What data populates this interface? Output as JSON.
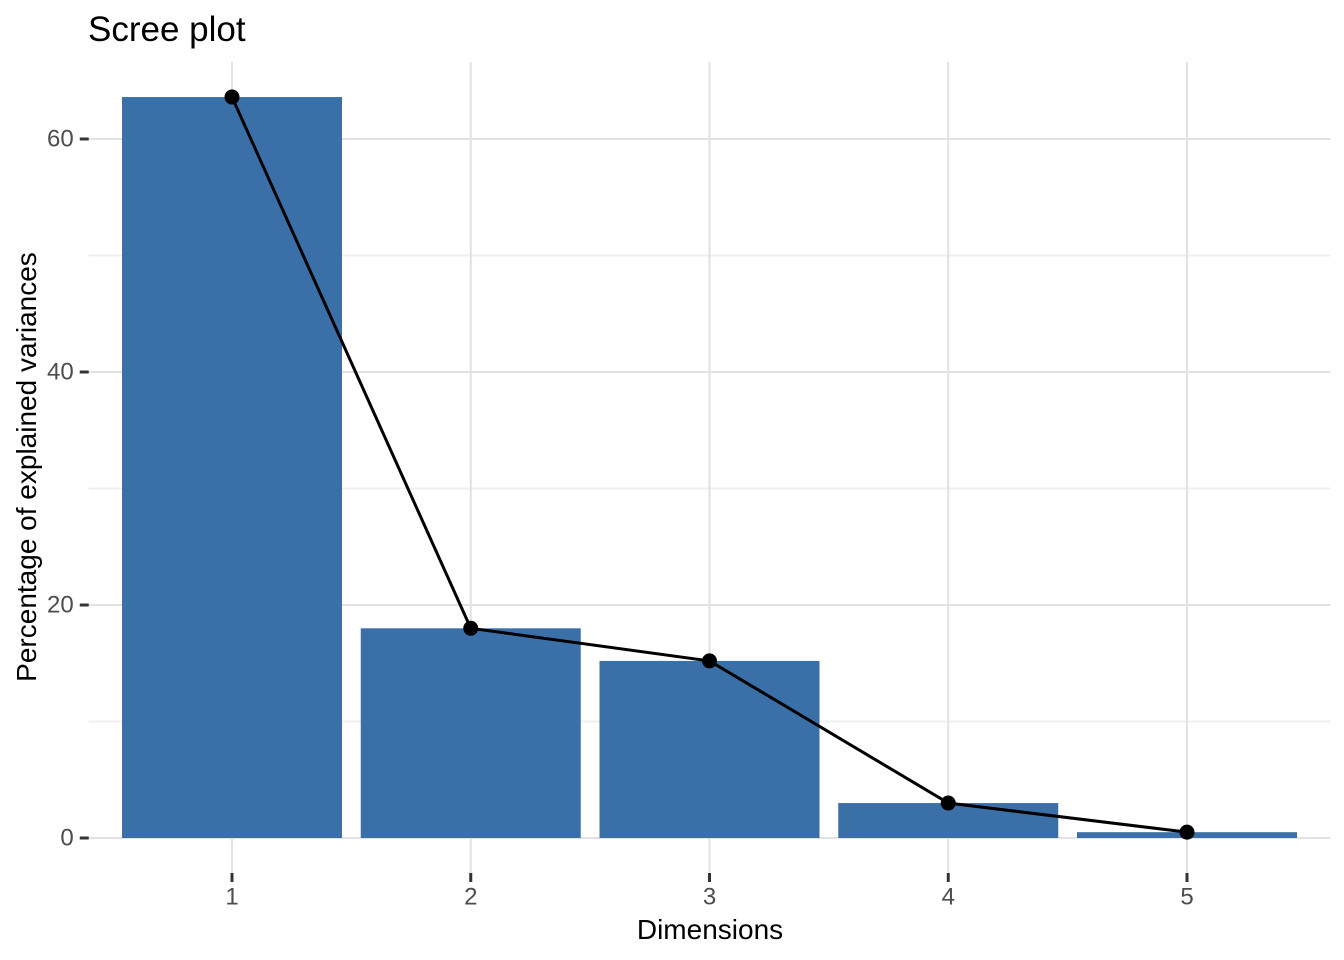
{
  "chart": {
    "title": "Scree plot",
    "x_axis_title": "Dimensions",
    "y_axis_title": "Percentage of explained variances"
  },
  "chart_data": {
    "type": "bar",
    "overlay": "line+point",
    "title": "Scree plot",
    "xlabel": "Dimensions",
    "ylabel": "Percentage of explained variances",
    "categories": [
      "1",
      "2",
      "3",
      "4",
      "5"
    ],
    "values": [
      63.6,
      18.0,
      15.2,
      3.0,
      0.5
    ],
    "y_ticks": [
      0,
      20,
      40,
      60
    ],
    "y_minor_gridlines": [
      10,
      30,
      50
    ],
    "ylim": [
      -3,
      66.6
    ],
    "grid": true,
    "legend_position": "none",
    "colors": {
      "bar_fill": "#3B6FA8",
      "line": "#000000",
      "point": "#000000",
      "grid_major": "#E2E2E2",
      "grid_minor": "#EFEFEF",
      "tick_mark": "#333333",
      "tick_label": "#4D4D4D",
      "title": "#000000",
      "axis_title": "#000000",
      "background": "#FFFFFF"
    }
  }
}
